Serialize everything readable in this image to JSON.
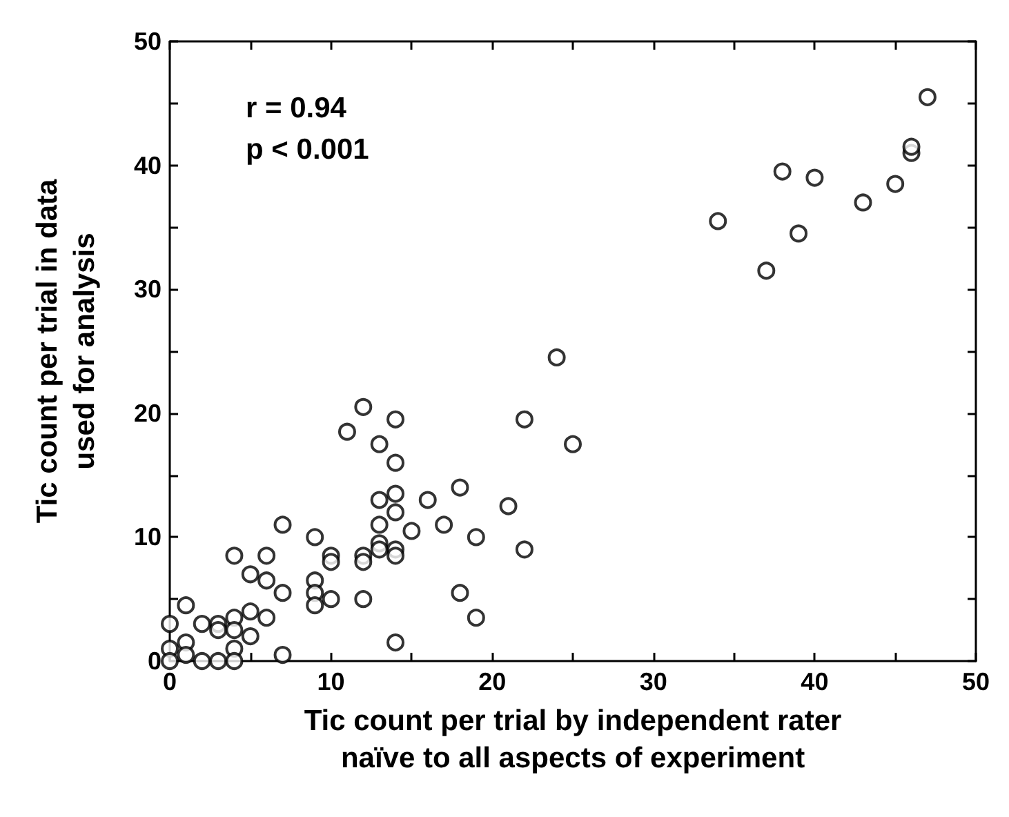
{
  "chart_data": {
    "type": "scatter",
    "xlabel": "Tic count per trial by independent rater\nnaïve to all aspects of experiment",
    "ylabel": "Tic count per trial in data\nused for analysis",
    "annotations": [
      "r = 0.94",
      "p < 0.001"
    ],
    "xlim": [
      0,
      50
    ],
    "ylim": [
      0,
      50
    ],
    "xticks": [
      0,
      {
        "value": 5,
        "label": null
      },
      10,
      {
        "value": 15,
        "label": null
      },
      20,
      {
        "value": 25,
        "label": null
      },
      30,
      {
        "value": 35,
        "label": null
      },
      40,
      {
        "value": 45,
        "label": null
      },
      50
    ],
    "yticks": [
      0,
      {
        "value": 5,
        "label": null
      },
      10,
      {
        "value": 15,
        "label": null
      },
      20,
      {
        "value": 25,
        "label": null
      },
      30,
      {
        "value": 35,
        "label": null
      },
      40,
      {
        "value": 45,
        "label": null
      },
      50
    ],
    "grid": false,
    "marker": "circle",
    "series": [
      {
        "color": "#000000",
        "x": [
          0,
          0,
          0,
          1,
          1,
          1,
          2,
          2,
          3,
          3,
          3,
          4,
          4,
          4,
          4,
          4,
          5,
          5,
          5,
          6,
          6,
          6,
          7,
          7,
          7,
          9,
          9,
          9,
          9,
          10,
          10,
          10,
          11,
          12,
          12,
          12,
          12,
          13,
          13,
          13,
          13,
          13,
          14,
          14,
          14,
          14,
          14,
          14,
          14,
          15,
          16,
          17,
          18,
          18,
          19,
          19,
          21,
          22,
          22,
          24,
          25,
          34,
          37,
          38,
          39,
          40,
          43,
          45,
          46,
          46,
          47
        ],
        "values": [
          3,
          1,
          0,
          4.5,
          1.5,
          0.5,
          3,
          0,
          3,
          2.5,
          0,
          8.5,
          3.5,
          2.5,
          1,
          0,
          7,
          4,
          2,
          8.5,
          6.5,
          3.5,
          11,
          5.5,
          0.5,
          10,
          6.5,
          5.5,
          4.5,
          8.5,
          8,
          5,
          18.5,
          20.5,
          8.5,
          8,
          5,
          17.5,
          13,
          11,
          9.5,
          9,
          19.5,
          16,
          13.5,
          12,
          9,
          8.5,
          1.5,
          10.5,
          13,
          11,
          14,
          5.5,
          10,
          3.5,
          12.5,
          19.5,
          9,
          24.5,
          17.5,
          35.5,
          31.5,
          39.5,
          34.5,
          39,
          37,
          38.5,
          41,
          41.5,
          45.5
        ]
      }
    ]
  }
}
